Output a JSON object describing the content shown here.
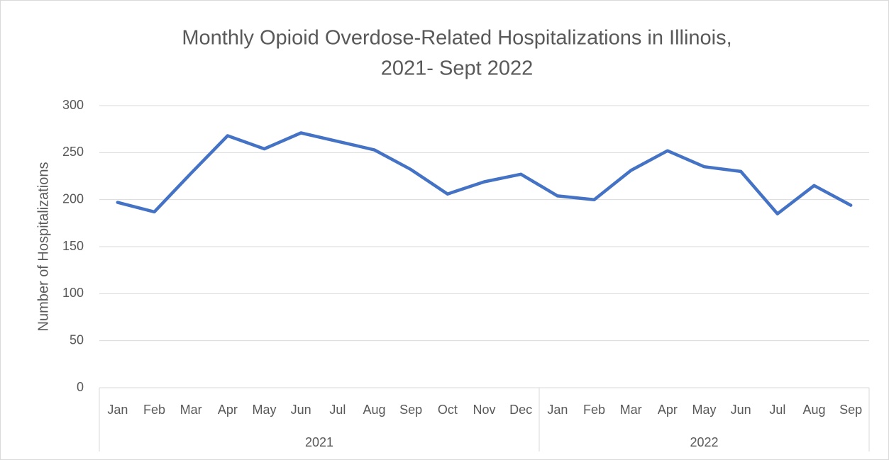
{
  "chart_data": {
    "type": "line",
    "title": [
      "Monthly Opioid Overdose-Related Hospitalizations in Illinois,",
      "2021- Sept 2022"
    ],
    "y_label": "Number of Hospitalizations",
    "groups": [
      {
        "label": "2021",
        "categories": [
          "Jan",
          "Feb",
          "Mar",
          "Apr",
          "May",
          "Jun",
          "Jul",
          "Aug",
          "Sep",
          "Oct",
          "Nov",
          "Dec"
        ]
      },
      {
        "label": "2022",
        "categories": [
          "Jan",
          "Feb",
          "Mar",
          "Apr",
          "May",
          "Jun",
          "Jul",
          "Aug",
          "Sep"
        ]
      }
    ],
    "values": [
      197,
      187,
      228,
      268,
      254,
      271,
      262,
      253,
      232,
      206,
      219,
      227,
      204,
      200,
      231,
      252,
      235,
      230,
      185,
      215,
      194
    ],
    "color": "#4472c4",
    "ylim": [
      0,
      300
    ],
    "yticks": [
      0,
      50,
      100,
      150,
      200,
      250,
      300
    ],
    "grid": true
  }
}
